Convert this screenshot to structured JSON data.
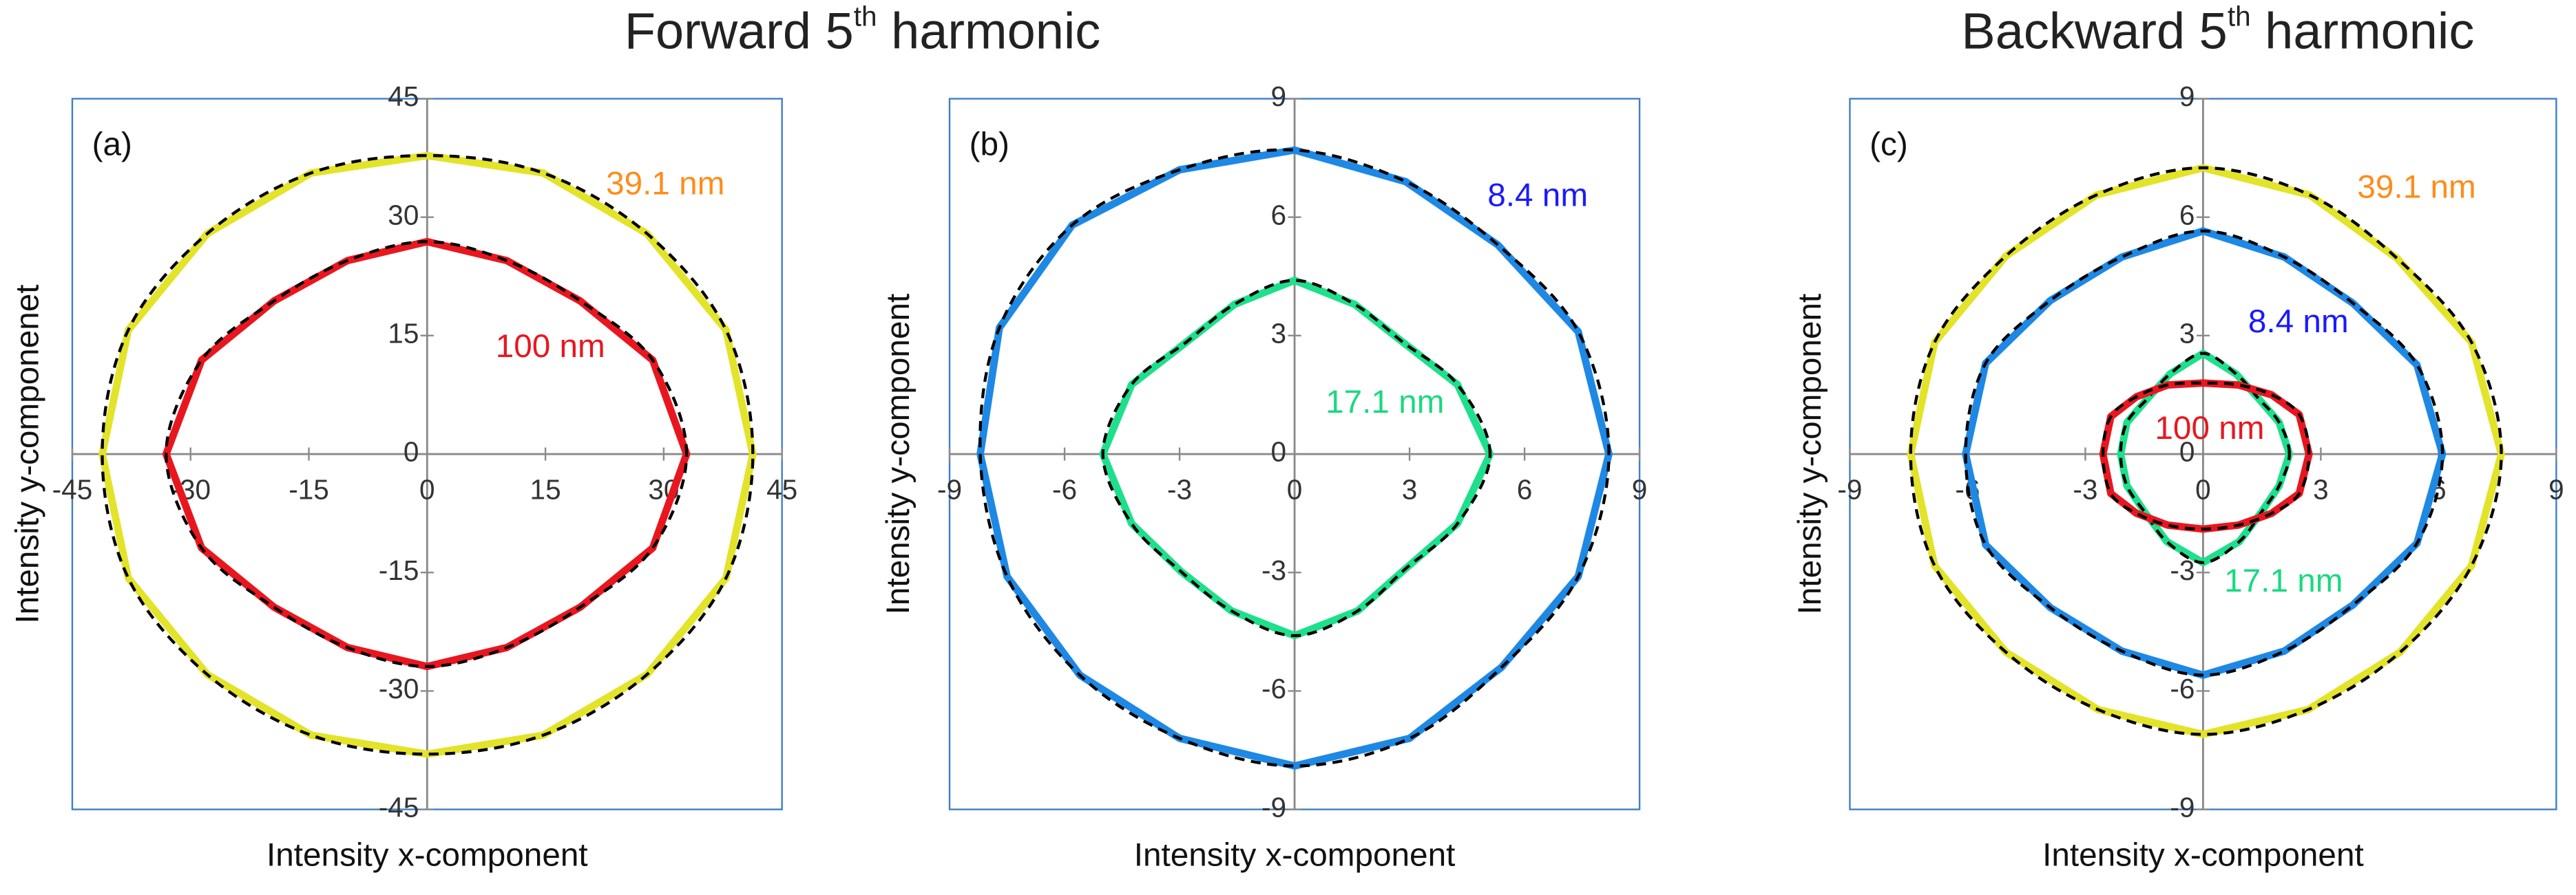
{
  "headers": [
    {
      "main": "Forward 5",
      "sup": "th",
      "tail": " harmonic"
    },
    {
      "main": "Backward 5",
      "sup": "th",
      "tail": " harmonic"
    }
  ],
  "chart_data": [
    {
      "type": "line",
      "panel_label": "(a)",
      "xlabel": "Intensity x-component",
      "ylabel": "Intensity y-componenet",
      "xlim": [
        -45,
        45
      ],
      "ylim": [
        -45,
        45
      ],
      "xticks": [
        -45,
        -30,
        -15,
        0,
        15,
        30,
        45
      ],
      "yticks": [
        -45,
        -30,
        -15,
        0,
        15,
        30,
        45
      ],
      "closed": true,
      "fit_color": "#000000",
      "series": [
        {
          "name": "39.1 nm",
          "color": "#e3e32a",
          "label_color": "#ff8c1a",
          "x": [
            41.3,
            37.9,
            27.9,
            14.7,
            0,
            -14.7,
            -27.9,
            -37.9,
            -41.2,
            -37.9,
            -27.9,
            -14.7,
            0,
            14.7,
            27.9,
            37.9
          ],
          "values": [
            0,
            15.7,
            27.9,
            35.6,
            37.8,
            35.6,
            27.9,
            15.7,
            0,
            -15.7,
            -27.9,
            -35.6,
            -38,
            -35.6,
            -27.9,
            -15.7
          ]
        },
        {
          "name": "100 nm",
          "color": "#e8171f",
          "label_color": "#e8171f",
          "x": [
            32.9,
            28.6,
            19.4,
            10.1,
            0,
            -10.1,
            -19.4,
            -28.6,
            -33.1,
            -28.6,
            -19.4,
            -10.1,
            0,
            10.1,
            19.4,
            28.6
          ],
          "values": [
            0,
            11.9,
            19.4,
            24.5,
            26.9,
            24.5,
            19.4,
            11.9,
            0,
            -11.9,
            -19.4,
            -24.5,
            -26.9,
            -24.5,
            -19.4,
            -11.9
          ]
        }
      ]
    },
    {
      "type": "line",
      "panel_label": "(b)",
      "xlabel": "Intensity x-component",
      "ylabel": "Intensity y-component",
      "xlim": [
        -9,
        9
      ],
      "ylim": [
        -9,
        9
      ],
      "xticks": [
        -9,
        -6,
        -3,
        0,
        3,
        6,
        9
      ],
      "yticks": [
        -9,
        -6,
        -3,
        0,
        3,
        6,
        9
      ],
      "closed": true,
      "fit_color": "#000000",
      "series": [
        {
          "name": "8.4 nm",
          "color": "#1e88e5",
          "label_color": "#1a1aff",
          "x": [
            8.2,
            7.4,
            5.3,
            2.9,
            0,
            -3.0,
            -5.8,
            -7.7,
            -8.2,
            -7.5,
            -5.6,
            -3.0,
            0,
            3.0,
            5.4,
            7.4
          ],
          "values": [
            0,
            3.1,
            5.3,
            6.9,
            7.7,
            7.2,
            5.8,
            3.2,
            0,
            -3.1,
            -5.6,
            -7.2,
            -7.9,
            -7.2,
            -5.4,
            -3.1
          ]
        },
        {
          "name": "17.1 nm",
          "color": "#1ee08c",
          "label_color": "#1ad980",
          "x": [
            5.1,
            4.25,
            2.83,
            1.57,
            0,
            -1.57,
            -2.83,
            -4.25,
            -5.0,
            -4.25,
            -2.97,
            -1.65,
            0,
            1.65,
            2.9,
            4.25
          ],
          "values": [
            0,
            1.76,
            2.83,
            3.79,
            4.4,
            3.79,
            2.83,
            1.76,
            0,
            -1.76,
            -2.97,
            -3.97,
            -4.6,
            -3.97,
            -2.9,
            -1.76
          ]
        }
      ]
    },
    {
      "type": "line",
      "panel_label": "(c)",
      "xlabel": "Intensity x-component",
      "ylabel": "Intensity y-component",
      "xlim": [
        -9,
        9
      ],
      "ylim": [
        -9,
        9
      ],
      "xticks": [
        -9,
        -6,
        -3,
        0,
        3,
        6,
        9
      ],
      "yticks": [
        -9,
        -6,
        -3,
        0,
        3,
        6,
        9
      ],
      "closed": true,
      "fit_color": "#000000",
      "series": [
        {
          "name": "39.1 nm",
          "color": "#e3e32a",
          "label_color": "#ff8c1a",
          "x": [
            7.6,
            6.84,
            4.95,
            2.72,
            0,
            -2.72,
            -5.02,
            -6.84,
            -7.45,
            -6.84,
            -5.02,
            -2.68,
            0,
            2.68,
            5.02,
            6.84
          ],
          "values": [
            0,
            2.83,
            4.95,
            6.56,
            7.25,
            6.56,
            5.02,
            2.83,
            0,
            -2.83,
            -5.02,
            -6.47,
            -7.1,
            -6.47,
            -5.02,
            -2.83
          ]
        },
        {
          "name": "8.4 nm",
          "color": "#1e88e5",
          "label_color": "#1a1aff",
          "x": [
            6.1,
            5.45,
            3.82,
            2.07,
            0,
            -2.07,
            -3.89,
            -5.54,
            -6.05,
            -5.54,
            -3.89,
            -2.07,
            0,
            2.07,
            3.82,
            5.45
          ],
          "values": [
            0,
            2.26,
            3.82,
            4.99,
            5.65,
            4.99,
            3.89,
            2.3,
            0,
            -2.3,
            -3.89,
            -4.99,
            -5.6,
            -4.99,
            -3.82,
            -2.26
          ]
        },
        {
          "name": "17.1 nm",
          "color": "#1ee08c",
          "label_color": "#1ad980",
          "x": [
            2.2,
            1.94,
            1.41,
            0.84,
            0,
            -0.84,
            -1.41,
            -1.94,
            -2.1,
            -1.94,
            -1.48,
            -0.92,
            0,
            0.92,
            1.48,
            1.94
          ],
          "values": [
            0,
            0.8,
            1.41,
            2.03,
            2.55,
            2.03,
            1.41,
            0.8,
            0,
            -0.8,
            -1.48,
            -2.22,
            -2.75,
            -2.22,
            -1.48,
            -0.8
          ]
        },
        {
          "name": "100 nm",
          "color": "#e8171f",
          "label_color": "#e8171f",
          "x": [
            2.7,
            2.45,
            1.75,
            0.9,
            0,
            -0.9,
            -1.7,
            -2.35,
            -2.55,
            -2.35,
            -1.7,
            -0.9,
            0,
            0.9,
            1.75,
            2.45
          ],
          "values": [
            0,
            1.0,
            1.5,
            1.75,
            1.8,
            1.75,
            1.45,
            0.95,
            0,
            -1.0,
            -1.5,
            -1.8,
            -1.9,
            -1.8,
            -1.5,
            -1.0
          ]
        }
      ]
    }
  ]
}
